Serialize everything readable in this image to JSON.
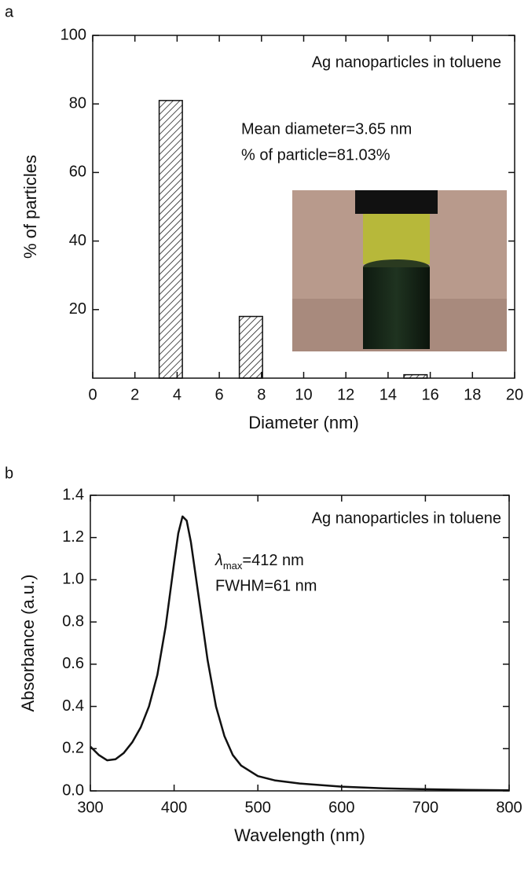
{
  "chart_data": [
    {
      "type": "bar",
      "label": "a",
      "xlabel": "Diameter (nm)",
      "ylabel": "% of particles",
      "x": [
        3.7,
        7.5,
        15.3
      ],
      "values": [
        81,
        18,
        1
      ],
      "color": "#111111",
      "xlim": [
        0,
        20
      ],
      "xticks": [
        0,
        2,
        4,
        6,
        8,
        10,
        12,
        14,
        16,
        18,
        20
      ],
      "ylim": [
        0,
        100
      ],
      "yticks": [
        20,
        40,
        60,
        80,
        100
      ],
      "grid": false,
      "annotations": [
        "Ag  nanoparticles in toluene",
        "Mean diameter=3.65 nm",
        "% of particle=81.03%"
      ]
    },
    {
      "type": "line",
      "label": "b",
      "xlabel": "Wavelength (nm)",
      "ylabel": "Absorbance (a.u.)",
      "x": [
        300,
        310,
        320,
        330,
        340,
        350,
        360,
        370,
        380,
        390,
        400,
        405,
        410,
        415,
        420,
        430,
        440,
        450,
        460,
        470,
        480,
        500,
        520,
        550,
        600,
        650,
        700,
        750,
        800
      ],
      "values": [
        0.21,
        0.17,
        0.145,
        0.15,
        0.18,
        0.23,
        0.3,
        0.4,
        0.55,
        0.78,
        1.08,
        1.22,
        1.3,
        1.28,
        1.18,
        0.9,
        0.62,
        0.4,
        0.26,
        0.17,
        0.12,
        0.07,
        0.05,
        0.035,
        0.02,
        0.012,
        0.008,
        0.005,
        0.003
      ],
      "color": "#111111",
      "xlim": [
        300,
        800
      ],
      "xticks": [
        300,
        400,
        500,
        600,
        700,
        800
      ],
      "ylim": [
        0,
        1.4
      ],
      "yticks": [
        {
          "value": 0,
          "label": "0.0"
        },
        0.2,
        0.4,
        0.6,
        0.8,
        {
          "value": 1,
          "label": "1.0"
        },
        1.2,
        1.4
      ],
      "grid": false,
      "annotations": [
        "Ag nanoparticles in toluene",
        "FWHM=61 nm"
      ],
      "lambda_label": {
        "symbol": "λ",
        "subscript": "max",
        "text": "=412 nm"
      }
    }
  ]
}
